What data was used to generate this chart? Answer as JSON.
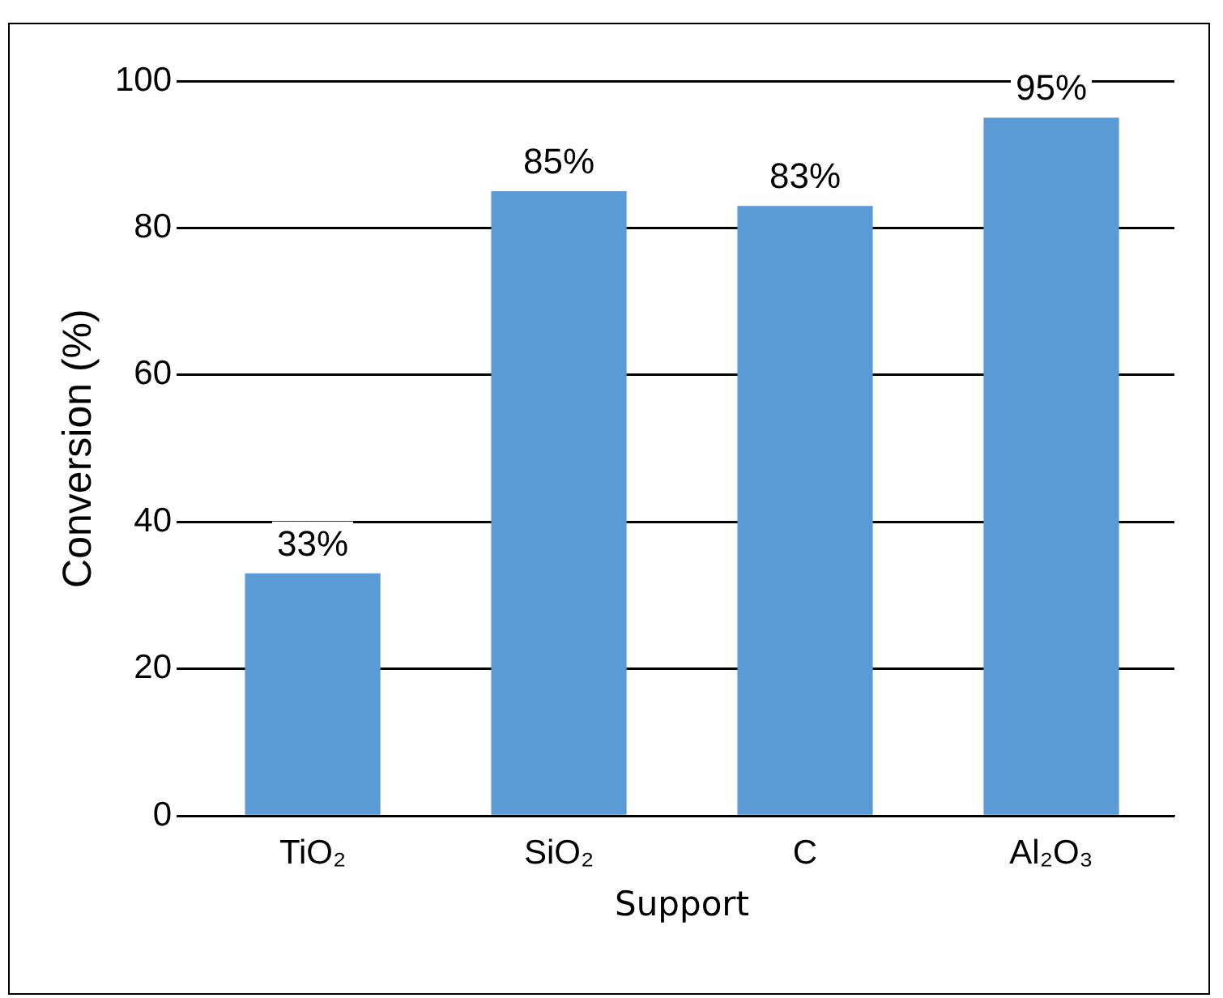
{
  "chart_data": {
    "type": "bar",
    "xlabel": "Support",
    "ylabel": "Conversion (%)",
    "categories": [
      "TiO₂",
      "SiO₂",
      "C",
      "Al₂O₃"
    ],
    "values": [
      33,
      85,
      83,
      95
    ],
    "color": "#5b9bd5",
    "value_labels": [
      "33%",
      "85%",
      "83%",
      "95%"
    ],
    "ylim": [
      0,
      100
    ],
    "yticks": [
      0,
      20,
      40,
      60,
      80,
      100
    ],
    "grid": "y"
  }
}
